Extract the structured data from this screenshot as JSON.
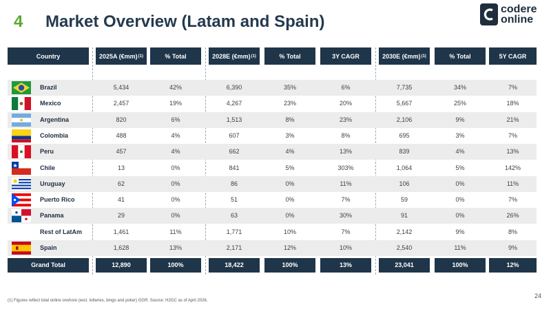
{
  "slide": {
    "number": "4",
    "title": "Market Overview (Latam and Spain)",
    "page": "24"
  },
  "logo": {
    "line1": "codere",
    "line2": "online"
  },
  "headers": {
    "country": "Country",
    "y2025": "2025A (€mm)",
    "y2025_sup": "(1)",
    "pct2025": "% Total",
    "y2028": "2028E (€mm)",
    "y2028_sup": "(1)",
    "pct2028": "% Total",
    "cagr3": "3Y CAGR",
    "y2030": "2030E (€mm)",
    "y2030_sup": "(1)",
    "pct2030": "% Total",
    "cagr5": "5Y CAGR"
  },
  "rows": [
    {
      "country": "Brazil",
      "flag": "brazil-flag-icon",
      "v2025": "5,434",
      "p2025": "42%",
      "v2028": "6,390",
      "p2028": "35%",
      "c3": "6%",
      "v2030": "7,735",
      "p2030": "34%",
      "c5": "7%"
    },
    {
      "country": "Mexico",
      "flag": "mexico-flag-icon",
      "v2025": "2,457",
      "p2025": "19%",
      "v2028": "4,267",
      "p2028": "23%",
      "c3": "20%",
      "v2030": "5,667",
      "p2030": "25%",
      "c5": "18%"
    },
    {
      "country": "Argentina",
      "flag": "argentina-flag-icon",
      "v2025": "820",
      "p2025": "6%",
      "v2028": "1,513",
      "p2028": "8%",
      "c3": "23%",
      "v2030": "2,106",
      "p2030": "9%",
      "c5": "21%"
    },
    {
      "country": "Colombia",
      "flag": "colombia-flag-icon",
      "v2025": "488",
      "p2025": "4%",
      "v2028": "607",
      "p2028": "3%",
      "c3": "8%",
      "v2030": "695",
      "p2030": "3%",
      "c5": "7%"
    },
    {
      "country": "Peru",
      "flag": "peru-flag-icon",
      "v2025": "457",
      "p2025": "4%",
      "v2028": "662",
      "p2028": "4%",
      "c3": "13%",
      "v2030": "839",
      "p2030": "4%",
      "c5": "13%"
    },
    {
      "country": "Chile",
      "flag": "chile-flag-icon",
      "v2025": "13",
      "p2025": "0%",
      "v2028": "841",
      "p2028": "5%",
      "c3": "303%",
      "v2030": "1,064",
      "p2030": "5%",
      "c5": "142%"
    },
    {
      "country": "Uruguay",
      "flag": "uruguay-flag-icon",
      "v2025": "62",
      "p2025": "0%",
      "v2028": "86",
      "p2028": "0%",
      "c3": "11%",
      "v2030": "106",
      "p2030": "0%",
      "c5": "11%"
    },
    {
      "country": "Puerto Rico",
      "flag": "puerto-rico-flag-icon",
      "v2025": "41",
      "p2025": "0%",
      "v2028": "51",
      "p2028": "0%",
      "c3": "7%",
      "v2030": "59",
      "p2030": "0%",
      "c5": "7%"
    },
    {
      "country": "Panama",
      "flag": "panama-flag-icon",
      "v2025": "29",
      "p2025": "0%",
      "v2028": "63",
      "p2028": "0%",
      "c3": "30%",
      "v2030": "91",
      "p2030": "0%",
      "c5": "26%"
    },
    {
      "country": "Rest of LatAm",
      "flag": "",
      "v2025": "1,461",
      "p2025": "11%",
      "v2028": "1,771",
      "p2028": "10%",
      "c3": "7%",
      "v2030": "2,142",
      "p2030": "9%",
      "c5": "8%"
    },
    {
      "country": "Spain",
      "flag": "spain-flag-icon",
      "v2025": "1,628",
      "p2025": "13%",
      "v2028": "2,171",
      "p2028": "12%",
      "c3": "10%",
      "v2030": "2,540",
      "p2030": "11%",
      "c5": "9%"
    }
  ],
  "total": {
    "label": "Grand Total",
    "v2025": "12,890",
    "p2025": "100%",
    "v2028": "18,422",
    "p2028": "100%",
    "c3": "13%",
    "v2030": "23,041",
    "p2030": "100%",
    "c5": "12%"
  },
  "footnote": "(1)    Figures reflect total online onshore (excl. lotteries, bingo and poker) GGR. Source: H2GC as of April 2026.",
  "colors": {
    "accent_green": "#5aaa2e",
    "header_navy": "#1f3549",
    "row_shade": "#ececec"
  }
}
